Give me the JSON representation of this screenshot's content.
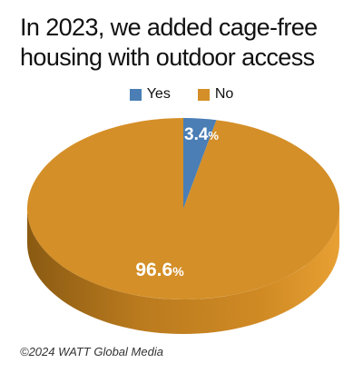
{
  "chart_data": {
    "type": "pie",
    "title": "In 2023, we added cage-free housing with outdoor access",
    "title_lines": [
      "In 2023, we added cage-free",
      "housing with outdoor access"
    ],
    "categories": [
      "Yes",
      "No"
    ],
    "values": [
      3.4,
      96.6
    ],
    "value_labels": [
      "3.4",
      "96.6"
    ],
    "unit": "%",
    "colors": [
      "#4a7eb5",
      "#d48f28"
    ],
    "legend_position": "top"
  },
  "footer": {
    "credit": "©2024 WATT Global Media"
  }
}
